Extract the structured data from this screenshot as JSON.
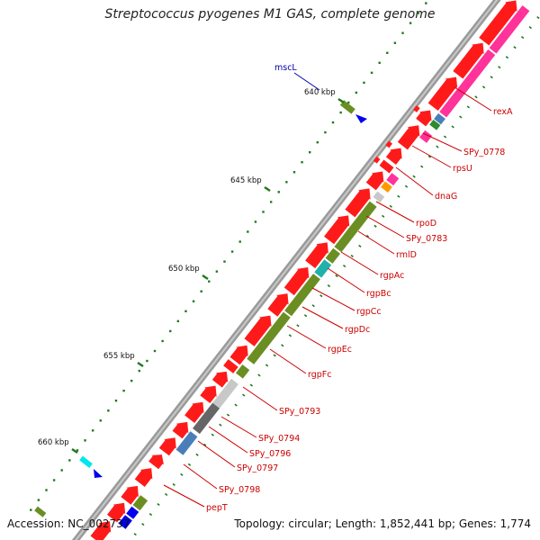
{
  "title": "Streptococcus pyogenes M1 GAS, complete genome",
  "footer": {
    "accession": "Accession: NC_002737",
    "stats": "Topology: circular; Length: 1,852,441 bp; Genes: 1,774"
  },
  "colors": {
    "red": "#ff1a1a",
    "magenta": "#ff3399",
    "olive": "#6b8e23",
    "teal": "#20b2aa",
    "orange": "#ff9900",
    "steelblue": "#4a7ebb",
    "gray": "#666666",
    "lightgray": "#c8c8c8",
    "blue": "#0000ee",
    "cyan": "#00e5ee",
    "green": "#2e8b2e",
    "label_red": "#cc0000",
    "label_blue": "#0000aa"
  },
  "ruler_labels": [
    "640 kbp",
    "645 kbp",
    "650 kbp",
    "655 kbp",
    "660 kbp"
  ],
  "gene_labels": [
    {
      "text": "rexA",
      "color": "red"
    },
    {
      "text": "SPy_0778",
      "color": "red"
    },
    {
      "text": "rpsU",
      "color": "red"
    },
    {
      "text": "dnaG",
      "color": "red"
    },
    {
      "text": "rpoD",
      "color": "red"
    },
    {
      "text": "SPy_0783",
      "color": "red"
    },
    {
      "text": "rmlD",
      "color": "red"
    },
    {
      "text": "rgpAc",
      "color": "red"
    },
    {
      "text": "rgpBc",
      "color": "red"
    },
    {
      "text": "rgpCc",
      "color": "red"
    },
    {
      "text": "rgpDc",
      "color": "red"
    },
    {
      "text": "rgpEc",
      "color": "red"
    },
    {
      "text": "rgpFc",
      "color": "red"
    },
    {
      "text": "SPy_0793",
      "color": "red"
    },
    {
      "text": "SPy_0794",
      "color": "red"
    },
    {
      "text": "SPy_0796",
      "color": "red"
    },
    {
      "text": "SPy_0797",
      "color": "red"
    },
    {
      "text": "SPy_0798",
      "color": "red"
    },
    {
      "text": "pepT",
      "color": "red"
    },
    {
      "text": "mscL",
      "color": "blue"
    }
  ]
}
